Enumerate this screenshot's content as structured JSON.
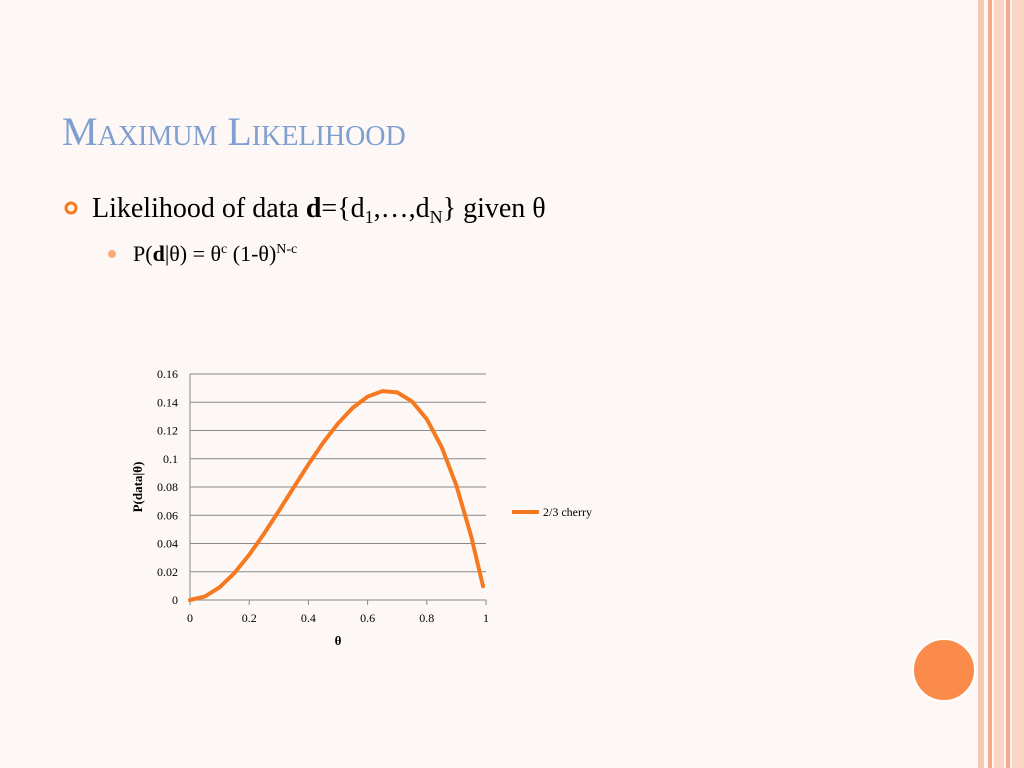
{
  "slide": {
    "title": "Maximum Likelihood",
    "bullets": [
      {
        "parts": [
          "Likelihood of data ",
          "d",
          "={d",
          "1",
          ",…,d",
          "N",
          "} given θ"
        ]
      },
      {
        "parts": [
          "P(",
          "d",
          "|θ) = θ",
          "c",
          " (1-θ)",
          "N-c"
        ]
      }
    ]
  },
  "chart_data": {
    "type": "line",
    "x_label": "θ",
    "y_label": "P(data|θ)",
    "x": [
      0,
      0.05,
      0.1,
      0.15,
      0.2,
      0.25,
      0.3,
      0.35,
      0.4,
      0.45,
      0.5,
      0.55,
      0.6,
      0.65,
      0.7,
      0.75,
      0.8,
      0.85,
      0.9,
      0.95,
      0.99
    ],
    "series": [
      {
        "name": "2/3 cherry",
        "color": "#f47920",
        "values": [
          0,
          0.0024,
          0.009,
          0.0191,
          0.032,
          0.0469,
          0.063,
          0.0796,
          0.096,
          0.1114,
          0.125,
          0.1361,
          0.144,
          0.1479,
          0.147,
          0.1406,
          0.128,
          0.1084,
          0.081,
          0.0451,
          0.0098
        ]
      }
    ],
    "xlim": [
      0,
      1
    ],
    "xticks": [
      0,
      0.2,
      0.4,
      0.6,
      0.8,
      1
    ],
    "ylim": [
      0,
      0.16
    ],
    "yticks": [
      0,
      0.02,
      0.04,
      0.06,
      0.08,
      0.1,
      0.12,
      0.14,
      0.16
    ],
    "grid": true,
    "legend": "right"
  }
}
